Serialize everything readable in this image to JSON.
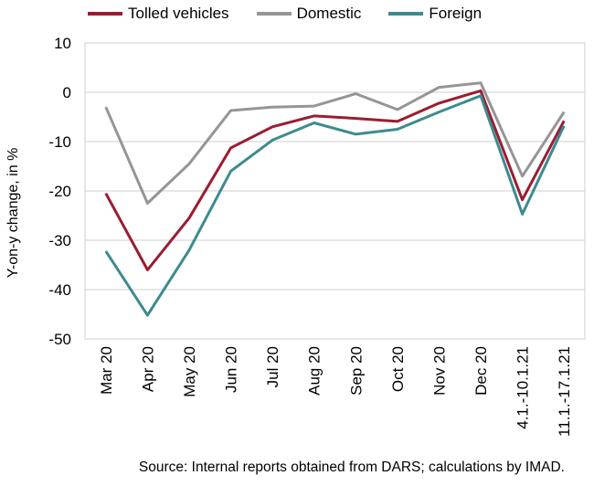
{
  "chart_data": {
    "type": "line",
    "categories": [
      "Mar 20",
      "Apr 20",
      "May 20",
      "Jun 20",
      "Jul 20",
      "Aug 20",
      "Sep 20",
      "Oct 20",
      "Nov 20",
      "Dec 20",
      "4.1.-10.1.21",
      "11.1.-17.1.21"
    ],
    "series": [
      {
        "name": "Tolled vehicles",
        "color": "#9b1c31",
        "values": [
          -20.5,
          -36.0,
          -25.5,
          -11.3,
          -7.0,
          -4.8,
          -5.3,
          -5.9,
          -2.2,
          0.3,
          -21.8,
          -5.8
        ]
      },
      {
        "name": "Domestic",
        "color": "#959595",
        "values": [
          -3.0,
          -22.5,
          -14.5,
          -3.7,
          -3.0,
          -2.8,
          -0.3,
          -3.5,
          1.0,
          1.9,
          -17.0,
          -4.0
        ]
      },
      {
        "name": "Foreign",
        "color": "#3d8b8e",
        "values": [
          -32.2,
          -45.2,
          -32.0,
          -16.0,
          -9.7,
          -6.2,
          -8.5,
          -7.5,
          -4.0,
          -0.7,
          -24.7,
          -6.8
        ]
      }
    ],
    "ylabel": "Y-on-y change, in %",
    "ylim": [
      -50,
      10
    ],
    "yticks": [
      10,
      0,
      -10,
      -20,
      -30,
      -40,
      -50
    ],
    "grid": "horizontal",
    "legend_position": "top"
  },
  "source": "Source: Internal reports obtained from DARS; calculations by IMAD."
}
